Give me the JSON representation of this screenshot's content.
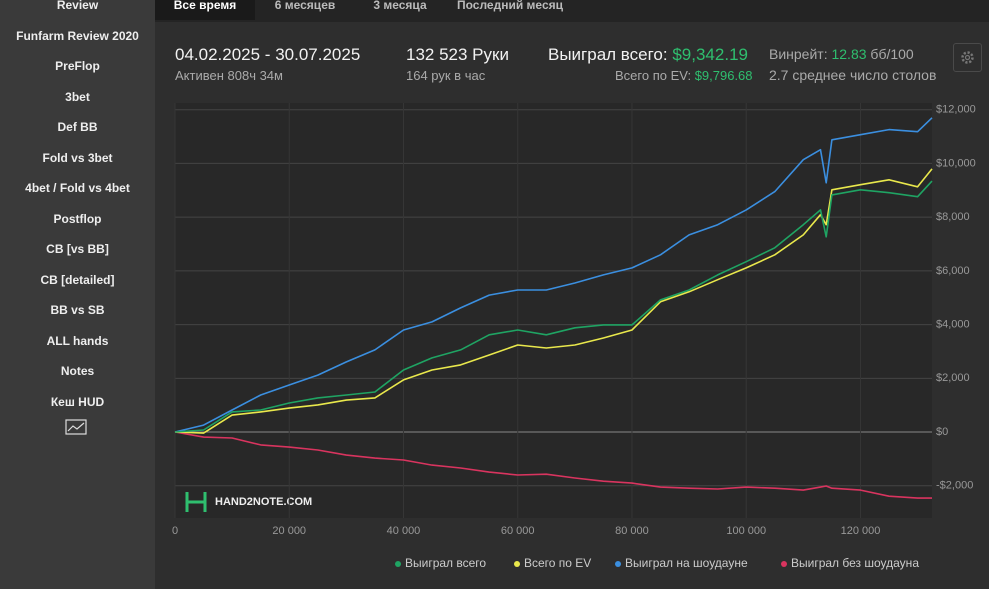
{
  "sidebar": {
    "items": [
      "Review",
      "Funfarm Review 2020",
      "PreFlop",
      "3bet",
      "Def BB",
      "Fold vs 3bet",
      "4bet / Fold vs 4bet",
      "Postflop",
      "CB [vs BB]",
      "CB [detailed]",
      "BB vs SB",
      "ALL hands",
      "Notes",
      "Кеш HUD"
    ]
  },
  "tabs": [
    "Все время",
    "6 месяцев",
    "3 месяца",
    "Последний месяц"
  ],
  "header": {
    "period": "04.02.2025 - 30.07.2025",
    "active": "Активен 808ч 34м",
    "hands": "132 523 Руки",
    "hands_per_hour": "164 рук в час",
    "won_label": "Выиграл всего:",
    "won_value": "$9,342.19",
    "ev_label": "Всего по EV:",
    "ev_value": "$9,796.68",
    "winrate_label": "Винрейт:",
    "winrate_value": "12.83",
    "winrate_unit": "бб/100",
    "tables": "2.7 среднее число столов"
  },
  "watermark": "HAND2NOTE.COM",
  "chart_data": {
    "type": "line",
    "x": [
      0,
      5000,
      10000,
      15000,
      20000,
      25000,
      30000,
      35000,
      40000,
      45000,
      50000,
      55000,
      60000,
      65000,
      70000,
      75000,
      80000,
      85000,
      90000,
      95000,
      100000,
      105000,
      110000,
      113000,
      114000,
      115000,
      120000,
      125000,
      130000,
      132523
    ],
    "series": [
      {
        "name": "Выиграл всего",
        "color": "#1fa463",
        "values": [
          0,
          75,
          750,
          820,
          1080,
          1270,
          1380,
          1490,
          2310,
          2760,
          3060,
          3620,
          3800,
          3620,
          3880,
          3990,
          3990,
          4920,
          5290,
          5850,
          6340,
          6860,
          7720,
          8270,
          7270,
          8830,
          9020,
          8910,
          8760,
          9342
        ]
      },
      {
        "name": "Всего по EV",
        "color": "#e9e84c",
        "values": [
          0,
          -40,
          630,
          750,
          890,
          1010,
          1190,
          1270,
          1940,
          2310,
          2500,
          2870,
          3240,
          3130,
          3240,
          3500,
          3800,
          4850,
          5220,
          5670,
          6110,
          6600,
          7340,
          8090,
          7720,
          9020,
          9210,
          9390,
          9130,
          9797
        ]
      },
      {
        "name": "Выиграл на шоудауне",
        "color": "#3b8fe0",
        "values": [
          0,
          260,
          820,
          1380,
          1750,
          2120,
          2610,
          3060,
          3800,
          4100,
          4620,
          5100,
          5290,
          5290,
          5550,
          5850,
          6110,
          6600,
          7340,
          7720,
          8270,
          8950,
          10140,
          10510,
          9280,
          10880,
          11070,
          11260,
          11180,
          11700
        ]
      },
      {
        "name": "Выиграл без шоудауна",
        "color": "#d9345f",
        "values": [
          0,
          -190,
          -220,
          -480,
          -560,
          -670,
          -860,
          -970,
          -1040,
          -1230,
          -1340,
          -1490,
          -1600,
          -1570,
          -1710,
          -1830,
          -1900,
          -2050,
          -2090,
          -2120,
          -2050,
          -2090,
          -2160,
          -2050,
          -2010,
          -2090,
          -2160,
          -2390,
          -2460,
          -2460
        ]
      }
    ],
    "xlim": [
      0,
      132523
    ],
    "ylim": [
      -3200,
      12250
    ],
    "xticks": [
      0,
      {
        "value": 20000,
        "label": "20 000"
      },
      {
        "value": 40000,
        "label": "40 000"
      },
      {
        "value": 60000,
        "label": "60 000"
      },
      {
        "value": 80000,
        "label": "80 000"
      },
      {
        "value": 100000,
        "label": "100 000"
      },
      {
        "value": 120000,
        "label": "120 000"
      }
    ],
    "yticks": [
      {
        "value": -2000,
        "label": "-$2,000"
      },
      {
        "value": 0,
        "label": "$0"
      },
      {
        "value": 2000,
        "label": "$2,000"
      },
      {
        "value": 4000,
        "label": "$4,000"
      },
      {
        "value": 6000,
        "label": "$6,000"
      },
      {
        "value": 8000,
        "label": "$8,000"
      },
      {
        "value": 10000,
        "label": "$10,000"
      },
      {
        "value": 12000,
        "label": "$12,000"
      }
    ],
    "grid": true
  }
}
